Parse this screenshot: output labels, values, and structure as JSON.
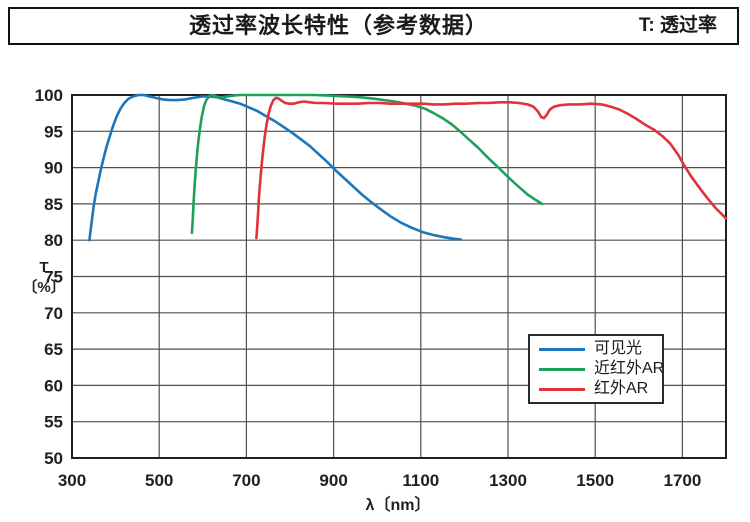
{
  "header": {
    "title": "透过率波长特性（参考数据）",
    "note": "T: 透过率"
  },
  "chart_data": {
    "type": "line",
    "title": "透过率波长特性（参考数据）",
    "xlabel": "λ〔nm〕",
    "ylabel_top": "T",
    "ylabel_bottom": "〔%〕",
    "xlim": [
      300,
      1800
    ],
    "ylim": [
      50,
      100
    ],
    "x_ticks": [
      300,
      500,
      700,
      900,
      1100,
      1300,
      1500,
      1700
    ],
    "y_ticks": [
      50,
      55,
      60,
      65,
      70,
      75,
      80,
      85,
      90,
      95,
      100
    ],
    "grid": true,
    "legend_position": "inside-right",
    "series": [
      {
        "name": "可见光",
        "key": "visible-light",
        "color": "#1d76b9",
        "points": [
          [
            340,
            80
          ],
          [
            343,
            81.5
          ],
          [
            346,
            83
          ],
          [
            350,
            84.8
          ],
          [
            355,
            86.6
          ],
          [
            360,
            88
          ],
          [
            366,
            89.7
          ],
          [
            372,
            91.2
          ],
          [
            379,
            92.8
          ],
          [
            386,
            94.2
          ],
          [
            394,
            95.7
          ],
          [
            402,
            97
          ],
          [
            411,
            98.1
          ],
          [
            420,
            98.9
          ],
          [
            430,
            99.5
          ],
          [
            440,
            99.8
          ],
          [
            452,
            100
          ],
          [
            465,
            100
          ],
          [
            478,
            99.8
          ],
          [
            492,
            99.6
          ],
          [
            508,
            99.4
          ],
          [
            525,
            99.3
          ],
          [
            542,
            99.3
          ],
          [
            560,
            99.4
          ],
          [
            578,
            99.6
          ],
          [
            598,
            99.8
          ],
          [
            615,
            99.8
          ],
          [
            632,
            99.7
          ],
          [
            650,
            99.4
          ],
          [
            668,
            99.1
          ],
          [
            686,
            98.8
          ],
          [
            705,
            98.3
          ],
          [
            725,
            97.8
          ],
          [
            745,
            97.1
          ],
          [
            765,
            96.4
          ],
          [
            785,
            95.6
          ],
          [
            805,
            94.8
          ],
          [
            825,
            93.9
          ],
          [
            845,
            93
          ],
          [
            865,
            91.9
          ],
          [
            885,
            90.8
          ],
          [
            905,
            89.6
          ],
          [
            925,
            88.5
          ],
          [
            945,
            87.4
          ],
          [
            965,
            86.3
          ],
          [
            985,
            85.3
          ],
          [
            1005,
            84.4
          ],
          [
            1030,
            83.3
          ],
          [
            1055,
            82.4
          ],
          [
            1080,
            81.7
          ],
          [
            1105,
            81.1
          ],
          [
            1130,
            80.7
          ],
          [
            1155,
            80.4
          ],
          [
            1175,
            80.2
          ],
          [
            1192,
            80.1
          ]
        ]
      },
      {
        "name": "近红外AR",
        "key": "near-ir-ar",
        "color": "#1ea05a",
        "points": [
          [
            575,
            81
          ],
          [
            577,
            83
          ],
          [
            579,
            85.2
          ],
          [
            581,
            87.3
          ],
          [
            584,
            89.8
          ],
          [
            587,
            91.9
          ],
          [
            590,
            93.7
          ],
          [
            594,
            95.6
          ],
          [
            598,
            97.1
          ],
          [
            603,
            98.5
          ],
          [
            608,
            99.3
          ],
          [
            614,
            99.8
          ],
          [
            620,
            100
          ],
          [
            628,
            99.9
          ],
          [
            636,
            99.7
          ],
          [
            645,
            99.7
          ],
          [
            655,
            99.8
          ],
          [
            668,
            99.9
          ],
          [
            685,
            100
          ],
          [
            710,
            100
          ],
          [
            740,
            100
          ],
          [
            775,
            100
          ],
          [
            815,
            100
          ],
          [
            855,
            100
          ],
          [
            895,
            99.9
          ],
          [
            930,
            99.8
          ],
          [
            960,
            99.7
          ],
          [
            990,
            99.5
          ],
          [
            1015,
            99.3
          ],
          [
            1040,
            99.1
          ],
          [
            1065,
            98.8
          ],
          [
            1090,
            98.5
          ],
          [
            1110,
            98.1
          ],
          [
            1130,
            97.5
          ],
          [
            1150,
            96.8
          ],
          [
            1170,
            96
          ],
          [
            1190,
            95
          ],
          [
            1210,
            93.9
          ],
          [
            1232,
            92.7
          ],
          [
            1255,
            91.3
          ],
          [
            1278,
            90
          ],
          [
            1300,
            88.7
          ],
          [
            1322,
            87.5
          ],
          [
            1345,
            86.3
          ],
          [
            1362,
            85.6
          ],
          [
            1378,
            85
          ]
        ]
      },
      {
        "name": "红外AR",
        "key": "ir-ar",
        "color": "#e03238",
        "points": [
          [
            723,
            80.3
          ],
          [
            725,
            82
          ],
          [
            727,
            84
          ],
          [
            729,
            86
          ],
          [
            732,
            88.4
          ],
          [
            735,
            90.4
          ],
          [
            738,
            92.2
          ],
          [
            742,
            94.2
          ],
          [
            746,
            95.9
          ],
          [
            751,
            97.4
          ],
          [
            756,
            98.5
          ],
          [
            762,
            99.3
          ],
          [
            768,
            99.6
          ],
          [
            774,
            99.5
          ],
          [
            781,
            99.2
          ],
          [
            789,
            98.9
          ],
          [
            798,
            98.8
          ],
          [
            808,
            98.8
          ],
          [
            820,
            99
          ],
          [
            832,
            99.1
          ],
          [
            845,
            99
          ],
          [
            860,
            98.9
          ],
          [
            880,
            98.9
          ],
          [
            905,
            98.8
          ],
          [
            930,
            98.8
          ],
          [
            955,
            98.8
          ],
          [
            980,
            98.9
          ],
          [
            1005,
            98.9
          ],
          [
            1030,
            98.8
          ],
          [
            1055,
            98.8
          ],
          [
            1080,
            98.8
          ],
          [
            1105,
            98.8
          ],
          [
            1130,
            98.7
          ],
          [
            1155,
            98.7
          ],
          [
            1180,
            98.8
          ],
          [
            1205,
            98.8
          ],
          [
            1230,
            98.9
          ],
          [
            1255,
            98.9
          ],
          [
            1280,
            99
          ],
          [
            1305,
            99
          ],
          [
            1325,
            98.9
          ],
          [
            1345,
            98.7
          ],
          [
            1358,
            98.4
          ],
          [
            1368,
            97.8
          ],
          [
            1376,
            97
          ],
          [
            1382,
            96.8
          ],
          [
            1388,
            97.2
          ],
          [
            1396,
            98
          ],
          [
            1406,
            98.4
          ],
          [
            1420,
            98.6
          ],
          [
            1440,
            98.7
          ],
          [
            1465,
            98.7
          ],
          [
            1490,
            98.8
          ],
          [
            1515,
            98.7
          ],
          [
            1535,
            98.4
          ],
          [
            1555,
            98
          ],
          [
            1575,
            97.4
          ],
          [
            1595,
            96.7
          ],
          [
            1615,
            95.9
          ],
          [
            1635,
            95.2
          ],
          [
            1655,
            94.3
          ],
          [
            1672,
            93.3
          ],
          [
            1690,
            91.8
          ],
          [
            1705,
            90.2
          ],
          [
            1720,
            88.8
          ],
          [
            1738,
            87.3
          ],
          [
            1756,
            85.9
          ],
          [
            1775,
            84.5
          ],
          [
            1800,
            83
          ]
        ]
      }
    ],
    "colors": {
      "grid": "#4f4f4f",
      "frame": "#1f1f1f",
      "background": "#ffffff"
    }
  }
}
